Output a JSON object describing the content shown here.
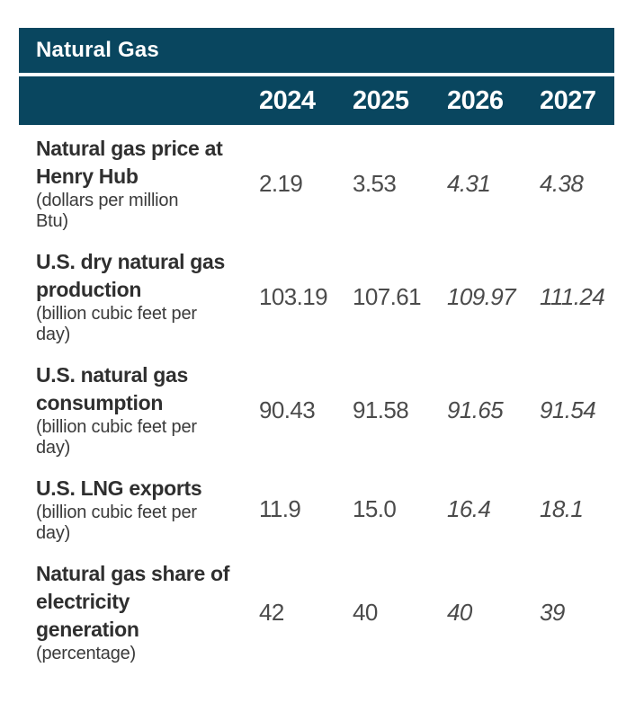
{
  "chart_data": {
    "type": "table",
    "title": "Natural Gas",
    "columns": [
      "2024",
      "2025",
      "2026",
      "2027"
    ],
    "rows": [
      {
        "label": "Natural gas price at Henry Hub",
        "label_lines": [
          "Natural gas price at",
          "Henry Hub"
        ],
        "unit": "(dollars per million Btu)",
        "unit_lines": [
          "(dollars per million",
          "Btu)"
        ],
        "values": [
          "2.19",
          "3.53",
          "4.31",
          "4.38"
        ],
        "italic_from_index": 2
      },
      {
        "label": "U.S. dry natural gas production",
        "label_lines": [
          "U.S. dry natural gas",
          "production"
        ],
        "unit": "(billion cubic feet per day)",
        "unit_lines": [
          "(billion cubic feet per",
          "day)"
        ],
        "values": [
          "103.19",
          "107.61",
          "109.97",
          "111.24"
        ],
        "italic_from_index": 2
      },
      {
        "label": "U.S. natural gas consumption",
        "label_lines": [
          "U.S. natural gas",
          "consumption"
        ],
        "unit": "(billion cubic feet per day)",
        "unit_lines": [
          "(billion cubic feet per",
          "day)"
        ],
        "values": [
          "90.43",
          "91.58",
          "91.65",
          "91.54"
        ],
        "italic_from_index": 2
      },
      {
        "label": "U.S. LNG exports",
        "label_lines": [
          "U.S. LNG exports"
        ],
        "unit": "(billion cubic feet per day)",
        "unit_lines": [
          "(billion cubic feet per",
          "day)"
        ],
        "values": [
          "11.9",
          "15.0",
          "16.4",
          "18.1"
        ],
        "italic_from_index": 2
      },
      {
        "label": "Natural gas share of electricity generation",
        "label_lines": [
          "Natural gas share of",
          "electricity",
          "generation"
        ],
        "unit": "(percentage)",
        "unit_lines": [
          "(percentage)"
        ],
        "values": [
          "42",
          "40",
          "40",
          "39"
        ],
        "italic_from_index": 2
      }
    ]
  },
  "colors": {
    "header_bg": "#09465f",
    "header_text": "#ffffff",
    "label_text": "#2f2f2f",
    "value_text": "#4b4b4b",
    "background": "#ffffff"
  }
}
